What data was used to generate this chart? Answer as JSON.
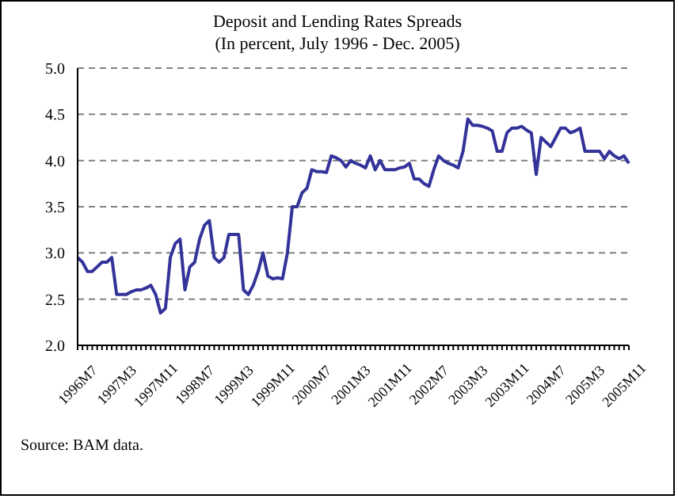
{
  "chart_data": {
    "type": "line",
    "title": "Deposit and Lending Rates Spreads",
    "subtitle": "(In percent, July 1996 - Dec. 2005)",
    "categories": [
      "1996M7",
      null,
      null,
      null,
      null,
      null,
      null,
      null,
      "1997M3",
      null,
      null,
      null,
      null,
      null,
      null,
      null,
      "1997M11",
      null,
      null,
      null,
      null,
      null,
      null,
      null,
      "1998M7",
      null,
      null,
      null,
      null,
      null,
      null,
      null,
      "1999M3",
      null,
      null,
      null,
      null,
      null,
      null,
      null,
      "1999M11",
      null,
      null,
      null,
      null,
      null,
      null,
      null,
      "2000M7",
      null,
      null,
      null,
      null,
      null,
      null,
      null,
      "2001M3",
      null,
      null,
      null,
      null,
      null,
      null,
      null,
      "2001M11",
      null,
      null,
      null,
      null,
      null,
      null,
      null,
      "2002M7",
      null,
      null,
      null,
      null,
      null,
      null,
      null,
      "2003M3",
      null,
      null,
      null,
      null,
      null,
      null,
      null,
      "2003M11",
      null,
      null,
      null,
      null,
      null,
      null,
      null,
      "2004M7",
      null,
      null,
      null,
      null,
      null,
      null,
      null,
      "2005M3",
      null,
      null,
      null,
      null,
      null,
      null,
      null,
      "2005M11",
      null
    ],
    "series": [
      {
        "color": "#333399",
        "values": [
          2.95,
          2.9,
          2.8,
          2.8,
          2.85,
          2.9,
          2.9,
          2.95,
          2.55,
          2.55,
          2.55,
          2.58,
          2.6,
          2.6,
          2.62,
          2.65,
          2.55,
          2.35,
          2.4,
          2.95,
          3.1,
          3.15,
          2.6,
          2.85,
          2.9,
          3.15,
          3.3,
          3.35,
          2.95,
          2.9,
          2.95,
          3.2,
          3.2,
          3.2,
          2.6,
          2.55,
          2.65,
          2.8,
          3.0,
          2.75,
          2.72,
          2.73,
          2.72,
          3.0,
          3.5,
          3.5,
          3.65,
          3.7,
          3.9,
          3.88,
          3.88,
          3.87,
          4.05,
          4.03,
          4.0,
          3.93,
          4.0,
          3.97,
          3.95,
          3.92,
          4.05,
          3.9,
          4.0,
          3.9,
          3.9,
          3.9,
          3.92,
          3.93,
          3.97,
          3.8,
          3.8,
          3.75,
          3.72,
          3.9,
          4.05,
          4.0,
          3.97,
          3.95,
          3.92,
          4.1,
          4.45,
          4.38,
          4.38,
          4.37,
          4.35,
          4.32,
          4.1,
          4.1,
          4.3,
          4.35,
          4.35,
          4.37,
          4.33,
          4.3,
          3.85,
          4.25,
          4.2,
          4.15,
          4.25,
          4.35,
          4.35,
          4.3,
          4.32,
          4.35,
          4.1,
          4.1,
          4.1,
          4.1,
          4.02,
          4.1,
          4.05,
          4.02,
          4.05,
          3.97
        ]
      }
    ],
    "ylim": [
      2.0,
      5.0
    ],
    "yticks": [
      {
        "value": 2.0,
        "label": "2.0"
      },
      {
        "value": 2.5,
        "label": "2.5"
      },
      {
        "value": 3.0,
        "label": "3.0"
      },
      {
        "value": 3.5,
        "label": "3.5"
      },
      {
        "value": 4.0,
        "label": "4.0"
      },
      {
        "value": 4.5,
        "label": "4.5"
      },
      {
        "value": 5.0,
        "label": "5.0"
      }
    ],
    "grid": "y",
    "legend": false,
    "marker": "none",
    "line_style": "solid",
    "annotations": [
      "Source: BAM data."
    ]
  }
}
